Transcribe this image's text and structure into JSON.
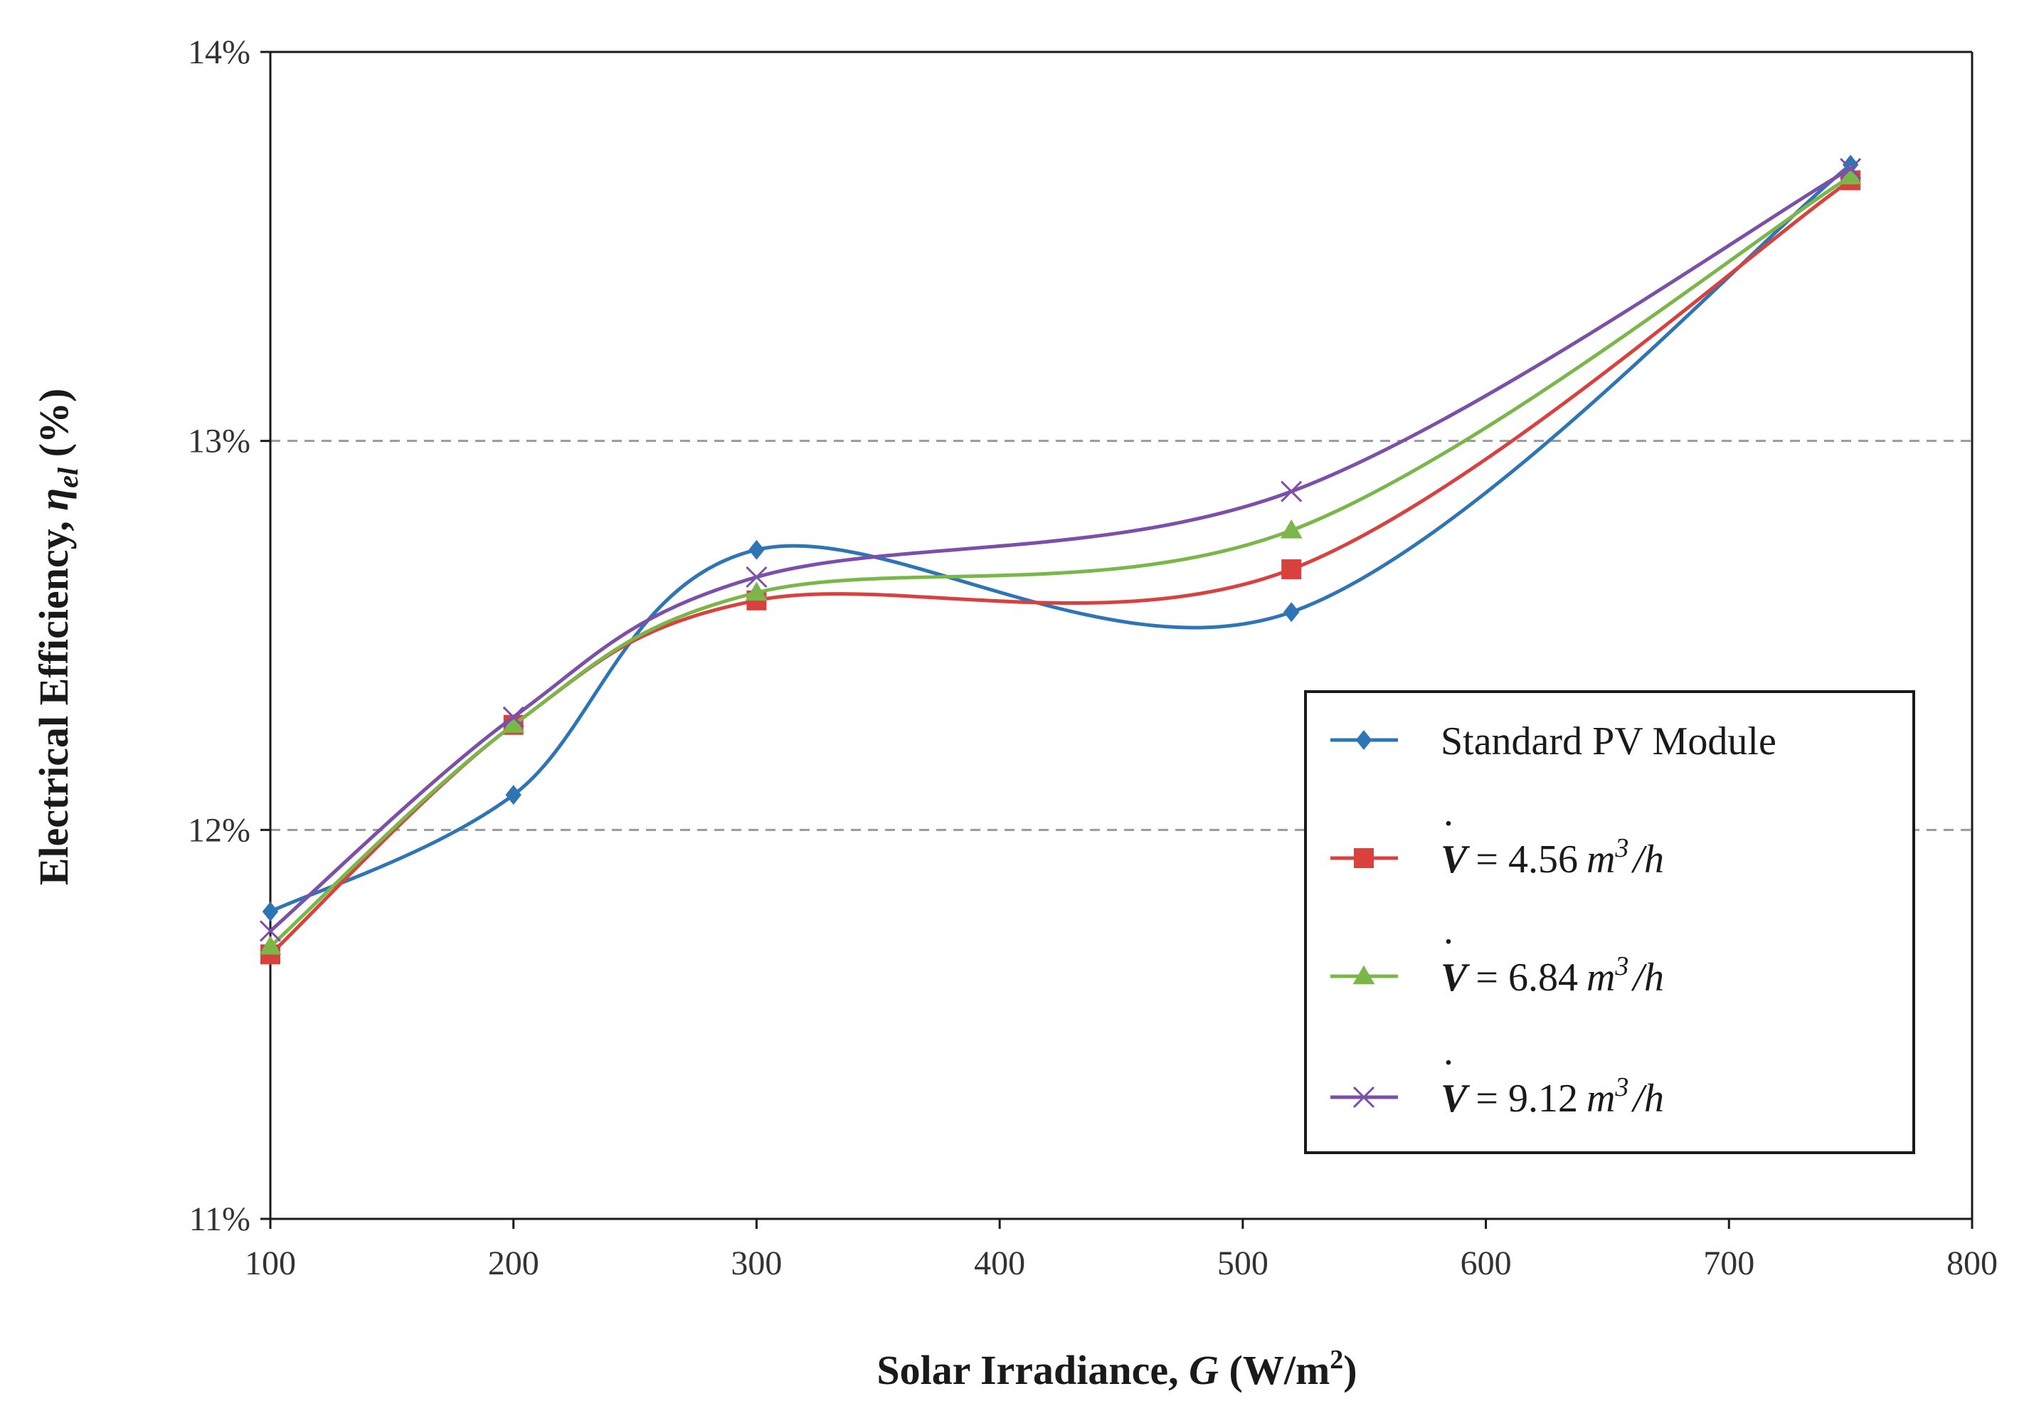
{
  "chart_data": {
    "type": "line",
    "xlabel_prefix": "Solar Irradiance, ",
    "xlabel_var": "G",
    "xlabel_unit": " (W/m",
    "xlabel_sup": "2",
    "xlabel_close": ")",
    "ylabel_prefix": "Electrical Efficiency, ",
    "ylabel_var": "η",
    "ylabel_sub": "el",
    "ylabel_unit": " (%)",
    "xlim": [
      100,
      800
    ],
    "ylim": [
      11,
      14
    ],
    "xticks": [
      100,
      200,
      300,
      400,
      500,
      600,
      700,
      800
    ],
    "yticks": [
      11,
      12,
      13,
      14
    ],
    "ytick_labels": [
      "11%",
      "12%",
      "13%",
      "14%"
    ],
    "gridlines_y": [
      12,
      13
    ],
    "legend_position": "center-right",
    "series": [
      {
        "name": "Standard PV Module",
        "legend_label": "Standard PV Module",
        "color": "#2e75b6",
        "marker": "diamond",
        "x": [
          100,
          200,
          300,
          520,
          750
        ],
        "y": [
          11.79,
          12.09,
          12.72,
          12.56,
          13.71
        ]
      },
      {
        "name": "V = 4.56 m3/h",
        "legend_rest": "= 4.56",
        "legend_unit": "m",
        "legend_sup": "3",
        "legend_tail": "/h",
        "color": "#d9413f",
        "marker": "square",
        "x": [
          100,
          200,
          300,
          520,
          750
        ],
        "y": [
          11.68,
          12.27,
          12.59,
          12.67,
          13.67
        ]
      },
      {
        "name": "V = 6.84 m3/h",
        "legend_rest": "= 6.84",
        "legend_unit": "m",
        "legend_sup": "3",
        "legend_tail": "/h",
        "color": "#7ab648",
        "marker": "triangle",
        "x": [
          100,
          200,
          300,
          520,
          750
        ],
        "y": [
          11.7,
          12.27,
          12.61,
          12.77,
          13.68
        ]
      },
      {
        "name": "V = 9.12 m3/h",
        "legend_rest": "= 9.12",
        "legend_unit": "m",
        "legend_sup": "3",
        "legend_tail": "/h",
        "color": "#7c4fa8",
        "marker": "x",
        "x": [
          100,
          200,
          300,
          520,
          750
        ],
        "y": [
          11.74,
          12.29,
          12.65,
          12.87,
          13.7
        ]
      }
    ],
    "legend_var": "V"
  }
}
